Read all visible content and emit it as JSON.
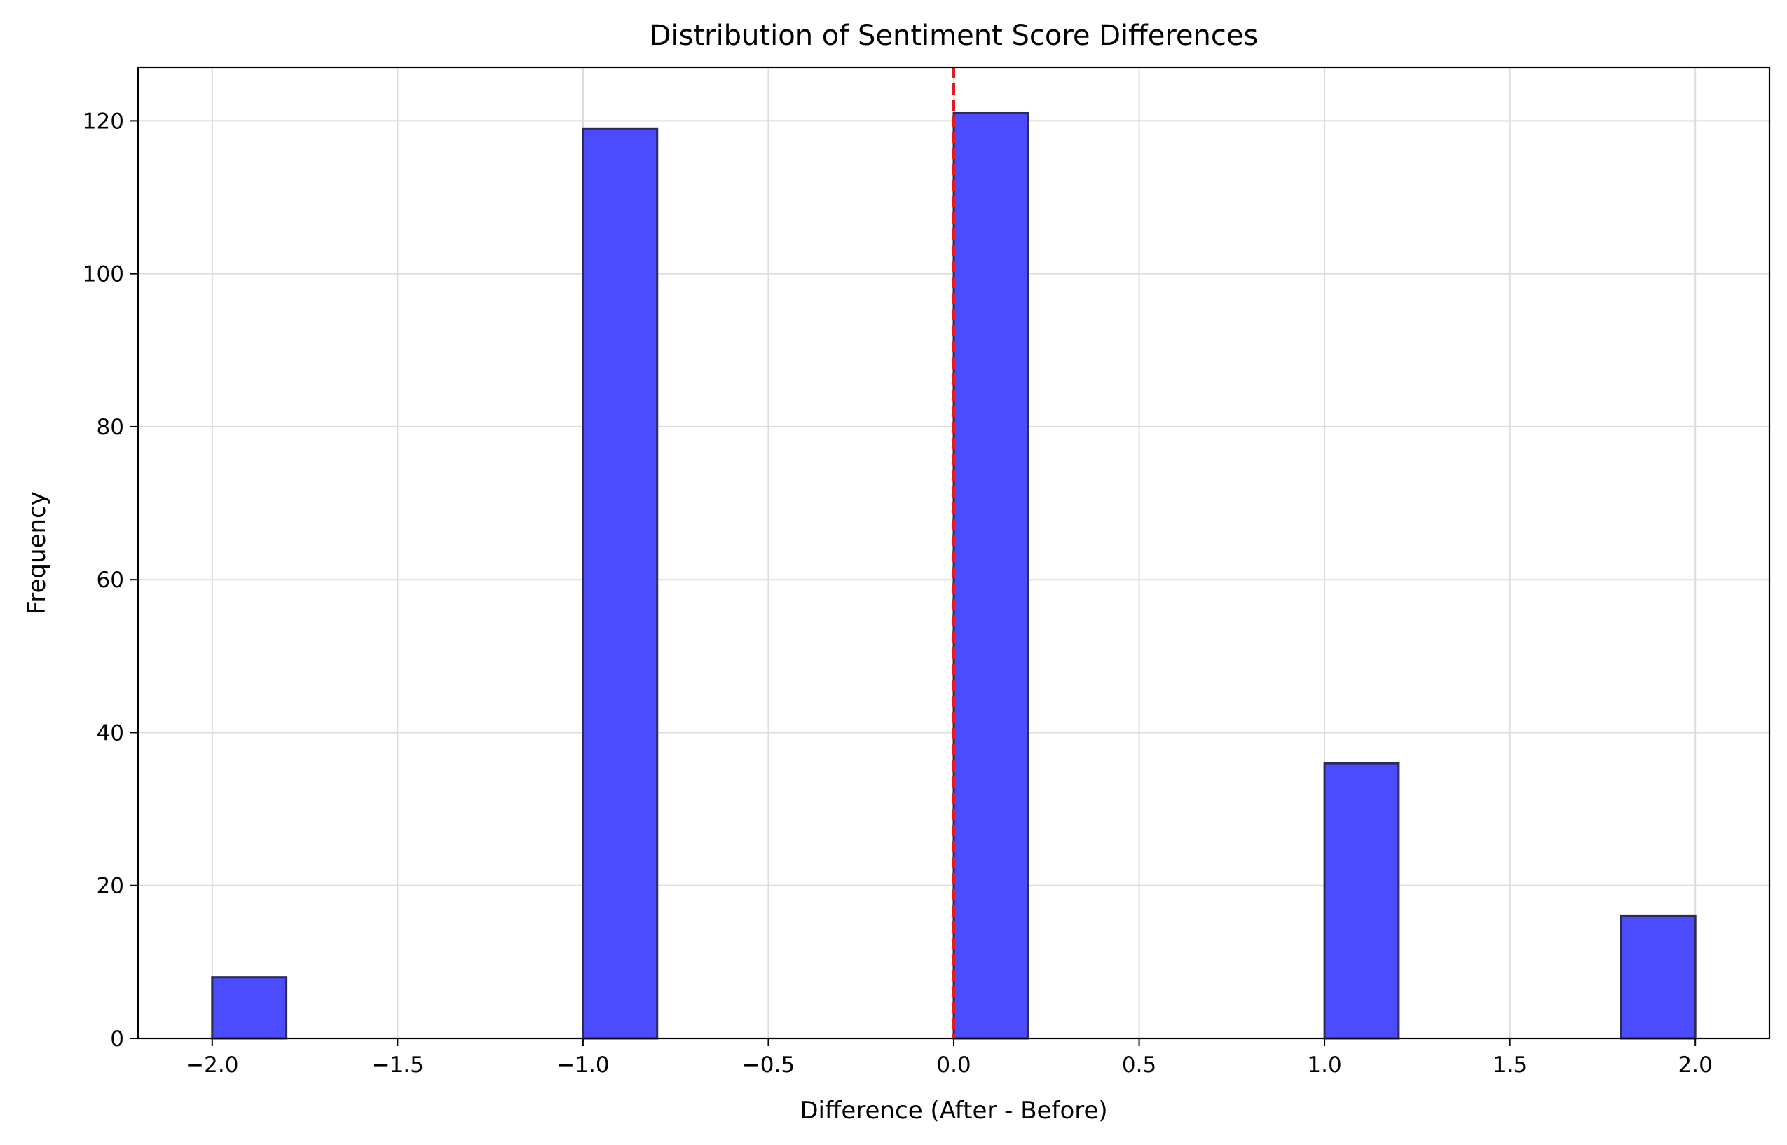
{
  "chart_data": {
    "type": "bar",
    "title": "Distribution of Sentiment Score Differences",
    "xlabel": "Difference (After - Before)",
    "ylabel": "Frequency",
    "xlim": [
      -2.2,
      2.2
    ],
    "ylim": [
      0,
      127
    ],
    "xticks": [
      -2.0,
      -1.5,
      -1.0,
      -0.5,
      0.0,
      0.5,
      1.0,
      1.5,
      2.0
    ],
    "xtick_labels": [
      "−2.0",
      "−1.5",
      "−1.0",
      "−0.5",
      "0.0",
      "0.5",
      "1.0",
      "1.5",
      "2.0"
    ],
    "yticks": [
      0,
      20,
      40,
      60,
      80,
      100,
      120
    ],
    "ytick_labels": [
      "0",
      "20",
      "40",
      "60",
      "80",
      "100",
      "120"
    ],
    "bin_width": 0.2,
    "bins": [
      {
        "start": -2.0,
        "end": -1.8,
        "count": 8
      },
      {
        "start": -1.0,
        "end": -0.8,
        "count": 119
      },
      {
        "start": 0.0,
        "end": 0.2,
        "count": 121
      },
      {
        "start": 1.0,
        "end": 1.2,
        "count": 36
      },
      {
        "start": 1.8,
        "end": 2.0,
        "count": 16
      }
    ],
    "reference_line": {
      "x": 0.0,
      "style": "dashed",
      "color": "#e41a1c"
    },
    "bar_color": "#4b4bff",
    "bar_edge_color": "#2b2b55",
    "grid": true,
    "legend": "none"
  }
}
